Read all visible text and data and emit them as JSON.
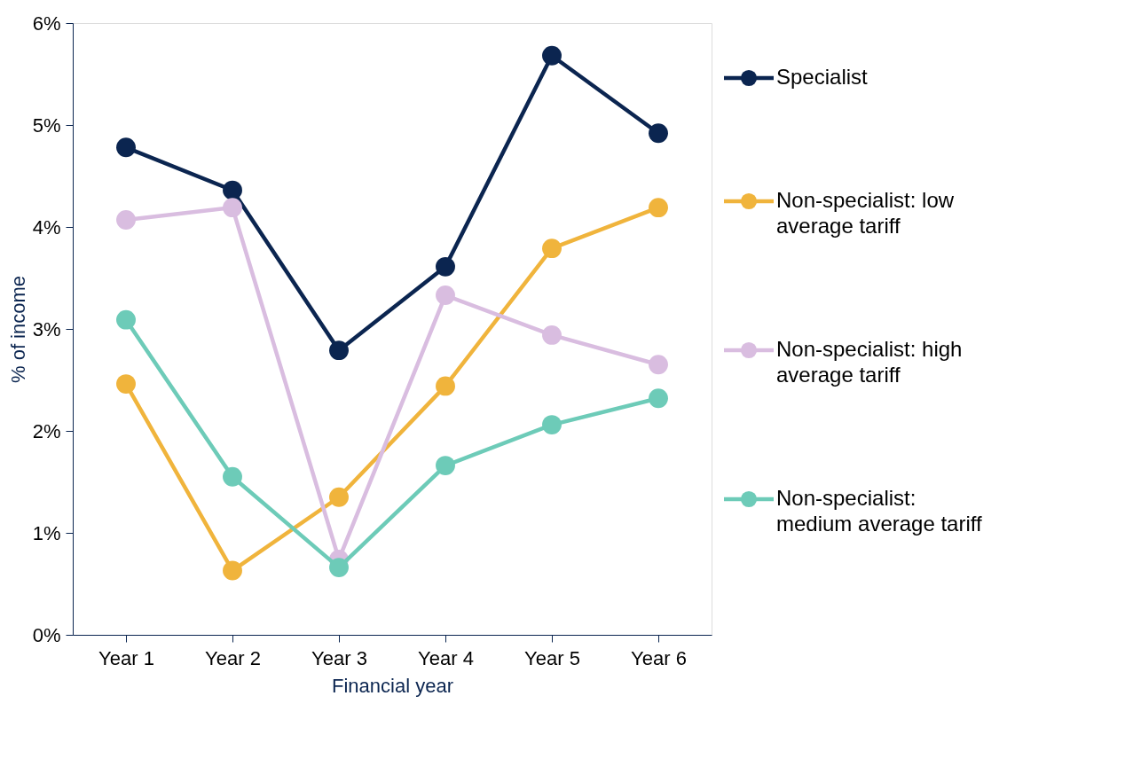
{
  "chart_data": {
    "type": "line",
    "xlabel": "Financial year",
    "ylabel": "% of income",
    "categories": [
      "Year 1",
      "Year 2",
      "Year 3",
      "Year 4",
      "Year 5",
      "Year 6"
    ],
    "series": [
      {
        "name": "Specialist",
        "color": "#0b2550",
        "values": [
          4.78,
          4.36,
          2.79,
          3.61,
          5.68,
          4.92
        ]
      },
      {
        "name": "Non-specialist: low average tariff",
        "color": "#f0b43c",
        "values": [
          2.46,
          0.63,
          1.35,
          2.44,
          3.79,
          4.19
        ]
      },
      {
        "name": "Non-specialist: high average tariff",
        "color": "#d9bde0",
        "values": [
          4.07,
          4.19,
          0.74,
          3.33,
          2.94,
          2.65
        ]
      },
      {
        "name": "Non-specialist: medium average tariff",
        "color": "#6dcbb8",
        "values": [
          3.09,
          1.55,
          0.66,
          1.66,
          2.06,
          2.32
        ]
      }
    ],
    "ylim": [
      0,
      6
    ],
    "yticks": [
      {
        "value": 0,
        "label": "0%"
      },
      {
        "value": 1,
        "label": "1%"
      },
      {
        "value": 2,
        "label": "2%"
      },
      {
        "value": 3,
        "label": "3%"
      },
      {
        "value": 4,
        "label": "4%"
      },
      {
        "value": 5,
        "label": "5%"
      },
      {
        "value": 6,
        "label": "6%"
      }
    ],
    "grid": false,
    "legend": "right",
    "marker": "circle",
    "line_style": "solid"
  }
}
